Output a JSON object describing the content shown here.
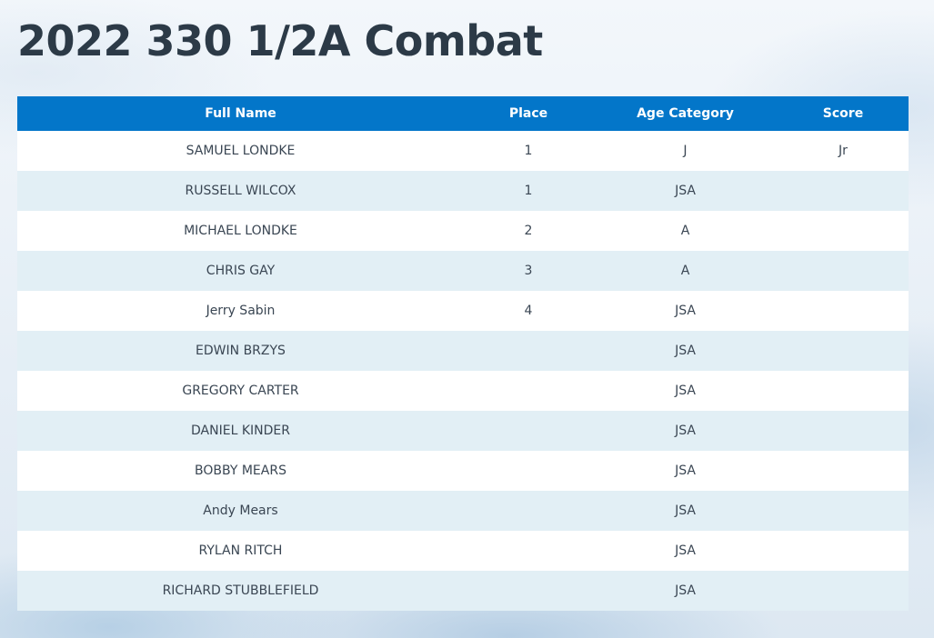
{
  "page": {
    "title": "2022 330 1/2A Combat"
  },
  "table": {
    "headers": {
      "name": "Full Name",
      "place": "Place",
      "age": "Age Category",
      "score": "Score"
    },
    "rows": [
      {
        "name": "SAMUEL LONDKE",
        "place": "1",
        "age": "J",
        "score": "Jr"
      },
      {
        "name": "RUSSELL WILCOX",
        "place": "1",
        "age": "JSA",
        "score": ""
      },
      {
        "name": "MICHAEL LONDKE",
        "place": "2",
        "age": "A",
        "score": ""
      },
      {
        "name": "CHRIS GAY",
        "place": "3",
        "age": "A",
        "score": ""
      },
      {
        "name": "Jerry Sabin",
        "place": "4",
        "age": "JSA",
        "score": ""
      },
      {
        "name": "EDWIN BRZYS",
        "place": "",
        "age": "JSA",
        "score": ""
      },
      {
        "name": "GREGORY CARTER",
        "place": "",
        "age": "JSA",
        "score": ""
      },
      {
        "name": "DANIEL KINDER",
        "place": "",
        "age": "JSA",
        "score": ""
      },
      {
        "name": "BOBBY MEARS",
        "place": "",
        "age": "JSA",
        "score": ""
      },
      {
        "name": "Andy Mears",
        "place": "",
        "age": "JSA",
        "score": ""
      },
      {
        "name": "RYLAN RITCH",
        "place": "",
        "age": "JSA",
        "score": ""
      },
      {
        "name": "RICHARD STUBBLEFIELD",
        "place": "",
        "age": "JSA",
        "score": ""
      }
    ]
  },
  "colors": {
    "header_background": "#0376c9",
    "title_text": "#2c3a47",
    "row_alt_background": "#e2eff5"
  }
}
